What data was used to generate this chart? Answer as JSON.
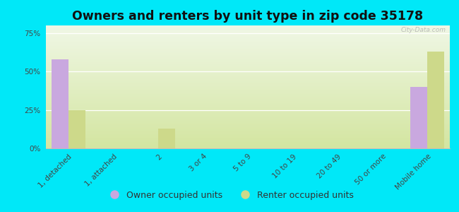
{
  "title": "Owners and renters by unit type in zip code 35178",
  "categories": [
    "1, detached",
    "1, attached",
    "2",
    "3 or 4",
    "5 to 9",
    "10 to 19",
    "20 to 49",
    "50 or more",
    "Mobile home"
  ],
  "owner_values": [
    58,
    0,
    0,
    0,
    0,
    0,
    0,
    0,
    40
  ],
  "renter_values": [
    25,
    0,
    13,
    0,
    0,
    0,
    0,
    0,
    63
  ],
  "owner_color": "#c9a8df",
  "renter_color": "#cdd98a",
  "background_color": "#00e8f8",
  "yticks": [
    0,
    25,
    50,
    75
  ],
  "ylim": [
    0,
    80
  ],
  "bar_width": 0.38,
  "title_fontsize": 12.5,
  "legend_fontsize": 9,
  "tick_fontsize": 7.5,
  "watermark": "City-Data.com",
  "grad_bottom_left": "#d4e4a0",
  "grad_top_right": "#eef5e0"
}
